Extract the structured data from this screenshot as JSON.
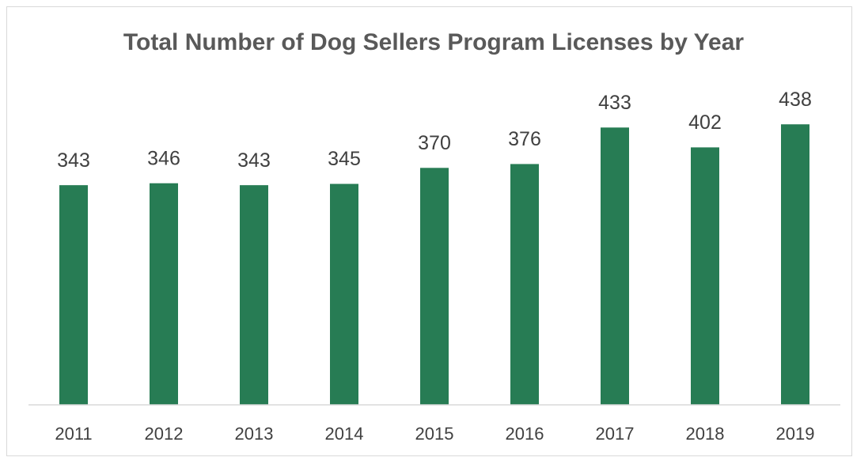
{
  "chart_data": {
    "type": "bar",
    "title": "Total Number of Dog Sellers Program Licenses by Year",
    "categories": [
      "2011",
      "2012",
      "2013",
      "2014",
      "2015",
      "2016",
      "2017",
      "2018",
      "2019"
    ],
    "values": [
      343,
      346,
      343,
      345,
      370,
      376,
      433,
      402,
      438
    ],
    "color": "#277c54",
    "ylim": [
      0,
      500
    ]
  }
}
